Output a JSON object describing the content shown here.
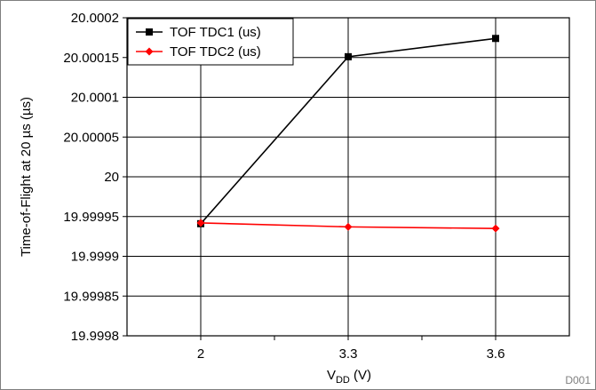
{
  "chart_data": {
    "type": "line",
    "title": "",
    "xlabel_main": "V",
    "xlabel_sub": "DD",
    "xlabel_rest": " (V)",
    "ylabel": "Time-of-Flight at 20 µs (µs)",
    "figure_code": "D001",
    "x_categories": [
      "2",
      "3.3",
      "3.6"
    ],
    "y_ticks": [
      "20.0002",
      "20.00015",
      "20.0001",
      "20.00005",
      "20",
      "19.99995",
      "19.9999",
      "19.99985",
      "19.9998"
    ],
    "ylim": [
      19.9998,
      20.0002
    ],
    "grid": true,
    "legend_position": "top-left",
    "series": [
      {
        "name": "TOF TDC1 (us)",
        "color": "#000000",
        "marker": "square",
        "values": [
          19.999941,
          20.000151,
          20.000174
        ]
      },
      {
        "name": "TOF TDC2 (us)",
        "color": "#ff0000",
        "marker": "diamond",
        "values": [
          19.999942,
          19.999937,
          19.999935
        ]
      }
    ]
  }
}
